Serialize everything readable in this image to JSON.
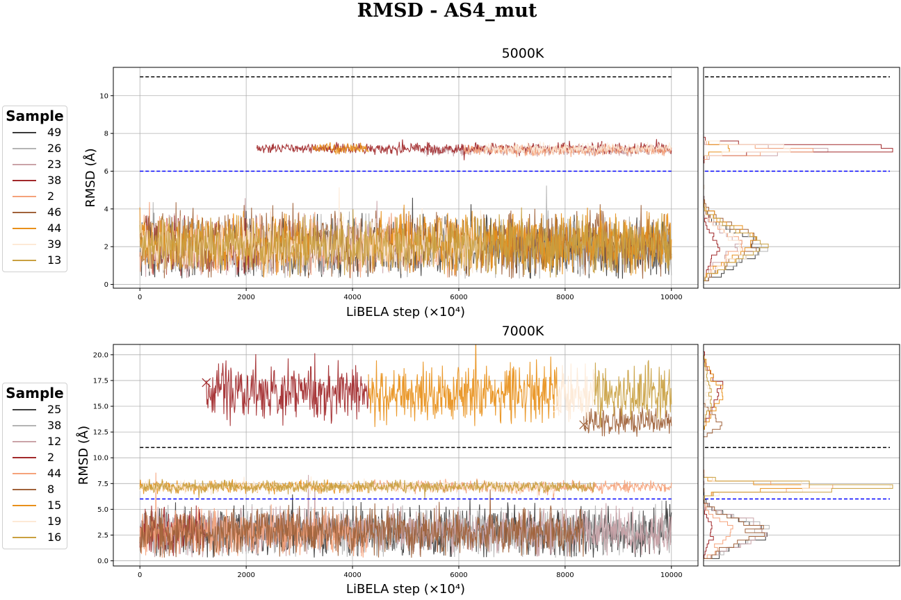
{
  "figure": {
    "title": "RMSD - AS4_mut"
  },
  "chart_data": [
    {
      "type": "line",
      "title": "5000K",
      "xlabel": "LiBELA step (×10⁴)",
      "ylabel": "RMSD (Å)",
      "xlim": [
        -500,
        10500
      ],
      "ylim": [
        -0.2,
        11.5
      ],
      "xticks": [
        0,
        2000,
        4000,
        6000,
        8000,
        10000
      ],
      "yticks": [
        0,
        2,
        4,
        6,
        8,
        10
      ],
      "grid": true,
      "reference_lines": [
        {
          "y": 11.0,
          "color": "#000000",
          "style": "dashed"
        },
        {
          "y": 6.0,
          "color": "#0000ff",
          "style": "dashed"
        }
      ],
      "legend": {
        "title": "Sample",
        "placement": "left",
        "entries": [
          {
            "label": "49",
            "color": "#3a3a3a"
          },
          {
            "label": "26",
            "color": "#b4b4b4"
          },
          {
            "label": "23",
            "color": "#caa3a8"
          },
          {
            "label": "38",
            "color": "#a1282a"
          },
          {
            "label": "2",
            "color": "#f5a27a"
          },
          {
            "label": "46",
            "color": "#a0623a"
          },
          {
            "label": "44",
            "color": "#e8901a"
          },
          {
            "label": "39",
            "color": "#fde9d6"
          },
          {
            "label": "13",
            "color": "#c9a040"
          }
        ]
      },
      "series": [
        {
          "name": "49",
          "color": "#3a3a3a",
          "segments": [
            {
              "x": [
                0,
                10000
              ],
              "center": 1.9,
              "spread": 1.6
            }
          ]
        },
        {
          "name": "26",
          "color": "#b4b4b4",
          "segments": [
            {
              "x": [
                0,
                10000
              ],
              "center": 2.0,
              "spread": 1.5
            }
          ]
        },
        {
          "name": "23",
          "color": "#caa3a8",
          "segments": [
            {
              "x": [
                0,
                5300
              ],
              "center": 2.0,
              "spread": 1.5
            },
            {
              "x": [
                5300,
                10000
              ],
              "center": 7.1,
              "spread": 0.3
            }
          ]
        },
        {
          "name": "38",
          "color": "#a1282a",
          "segments": [
            {
              "x": [
                0,
                2200
              ],
              "center": 2.0,
              "spread": 1.5
            },
            {
              "x": [
                2200,
                10000
              ],
              "center": 7.2,
              "spread": 0.3
            }
          ]
        },
        {
          "name": "2",
          "color": "#f5a27a",
          "segments": [
            {
              "x": [
                0,
                6100
              ],
              "center": 2.1,
              "spread": 1.5
            },
            {
              "x": [
                6100,
                10000
              ],
              "center": 7.1,
              "spread": 0.3
            }
          ]
        },
        {
          "name": "46",
          "color": "#a0623a",
          "segments": [
            {
              "x": [
                0,
                10000
              ],
              "center": 2.2,
              "spread": 1.7
            }
          ]
        },
        {
          "name": "44",
          "color": "#e8901a",
          "segments": [
            {
              "x": [
                0,
                3250
              ],
              "center": 2.2,
              "spread": 1.6
            },
            {
              "x": [
                3250,
                4300
              ],
              "center": 7.2,
              "spread": 0.3
            },
            {
              "x": [
                4300,
                10000
              ],
              "center": 2.2,
              "spread": 1.6
            }
          ]
        },
        {
          "name": "39",
          "color": "#fde9d6",
          "segments": [
            {
              "x": [
                0,
                6500
              ],
              "center": 2.0,
              "spread": 1.5
            },
            {
              "x": [
                6500,
                10000
              ],
              "center": 7.2,
              "spread": 0.3
            }
          ]
        },
        {
          "name": "13",
          "color": "#c9a040",
          "segments": [
            {
              "x": [
                0,
                10000
              ],
              "center": 2.1,
              "spread": 1.5
            }
          ]
        }
      ],
      "histogram_overlay": {
        "orientation": "horizontal",
        "peaks": [
          1.4,
          3.3,
          7.2
        ]
      }
    },
    {
      "type": "line",
      "title": "7000K",
      "xlabel": "LiBELA step (×10⁴)",
      "ylabel": "RMSD (Å)",
      "xlim": [
        -500,
        10500
      ],
      "ylim": [
        -0.5,
        21.0
      ],
      "xticks": [
        0,
        2000,
        4000,
        6000,
        8000,
        10000
      ],
      "yticks": [
        0.0,
        2.5,
        5.0,
        7.5,
        10.0,
        12.5,
        15.0,
        17.5,
        20.0
      ],
      "grid": true,
      "reference_lines": [
        {
          "y": 11.0,
          "color": "#000000",
          "style": "dashed"
        },
        {
          "y": 6.0,
          "color": "#0000ff",
          "style": "dashed"
        }
      ],
      "markers": [
        {
          "x": 1250,
          "y": 17.3,
          "color": "#a1282a",
          "symbol": "x"
        },
        {
          "x": 7850,
          "y": 14.8,
          "color": "#fde9d6",
          "symbol": "x"
        },
        {
          "x": 8350,
          "y": 13.2,
          "color": "#a0623a",
          "symbol": "x"
        }
      ],
      "legend": {
        "title": "Sample",
        "placement": "left",
        "entries": [
          {
            "label": "25",
            "color": "#3a3a3a"
          },
          {
            "label": "38",
            "color": "#b4b4b4"
          },
          {
            "label": "12",
            "color": "#caa3a8"
          },
          {
            "label": "2",
            "color": "#a1282a"
          },
          {
            "label": "44",
            "color": "#f5a27a"
          },
          {
            "label": "8",
            "color": "#a0623a"
          },
          {
            "label": "15",
            "color": "#e8901a"
          },
          {
            "label": "19",
            "color": "#fde9d6"
          },
          {
            "label": "16",
            "color": "#c9a040"
          }
        ]
      },
      "series": [
        {
          "name": "25",
          "color": "#3a3a3a",
          "segments": [
            {
              "x": [
                0,
                10000
              ],
              "center": 2.8,
              "spread": 2.4
            }
          ]
        },
        {
          "name": "38",
          "color": "#b4b4b4",
          "segments": [
            {
              "x": [
                0,
                10000
              ],
              "center": 2.8,
              "spread": 2.3
            }
          ]
        },
        {
          "name": "12",
          "color": "#caa3a8",
          "segments": [
            {
              "x": [
                0,
                10000
              ],
              "center": 2.8,
              "spread": 2.3
            }
          ]
        },
        {
          "name": "2",
          "color": "#a1282a",
          "segments": [
            {
              "x": [
                0,
                1250
              ],
              "center": 2.8,
              "spread": 2.2
            },
            {
              "x": [
                1250,
                4300
              ],
              "center": 16.3,
              "spread": 2.8
            }
          ]
        },
        {
          "name": "44",
          "color": "#f5a27a",
          "segments": [
            {
              "x": [
                0,
                4300
              ],
              "center": 2.8,
              "spread": 2.2
            },
            {
              "x": [
                4300,
                10000
              ],
              "center": 7.2,
              "spread": 0.6
            }
          ]
        },
        {
          "name": "8",
          "color": "#a0623a",
          "segments": [
            {
              "x": [
                0,
                8350
              ],
              "center": 2.8,
              "spread": 2.3
            },
            {
              "x": [
                8350,
                10000
              ],
              "center": 13.5,
              "spread": 1.3
            }
          ]
        },
        {
          "name": "15",
          "color": "#e8901a",
          "segments": [
            {
              "x": [
                0,
                4300
              ],
              "center": 7.2,
              "spread": 0.6
            },
            {
              "x": [
                4300,
                7850
              ],
              "center": 16.3,
              "spread": 2.8
            }
          ]
        },
        {
          "name": "19",
          "color": "#fde9d6",
          "segments": [
            {
              "x": [
                0,
                7850
              ],
              "center": 7.2,
              "spread": 0.6
            },
            {
              "x": [
                7850,
                8550
              ],
              "center": 16.3,
              "spread": 2.8
            }
          ]
        },
        {
          "name": "16",
          "color": "#c9a040",
          "segments": [
            {
              "x": [
                0,
                8550
              ],
              "center": 7.2,
              "spread": 0.6
            },
            {
              "x": [
                8550,
                10000
              ],
              "center": 16.3,
              "spread": 2.8
            }
          ]
        }
      ],
      "histogram_overlay": {
        "orientation": "horizontal",
        "peaks": [
          1.8,
          3.9,
          7.2,
          16.0
        ]
      }
    }
  ]
}
